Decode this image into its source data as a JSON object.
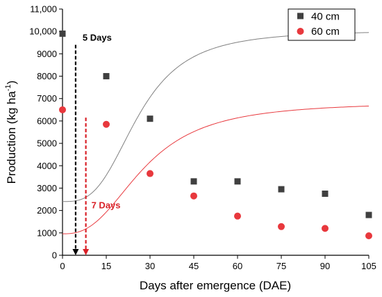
{
  "chart_data": {
    "type": "scatter",
    "title": "",
    "xlabel": "Days after emergence (DAE)",
    "ylabel": "Production (kg ha",
    "ylabel_sup": "-1",
    "ylabel_close": ")",
    "xlim": [
      0,
      105
    ],
    "ylim": [
      0,
      11000
    ],
    "x_ticks": [
      0,
      15,
      30,
      45,
      60,
      75,
      90,
      105
    ],
    "x_tick_labels": [
      "0",
      "15",
      "30",
      "45",
      "60",
      "75",
      "90",
      "105"
    ],
    "y_ticks": [
      0,
      1000,
      2000,
      3000,
      4000,
      5000,
      6000,
      7000,
      8000,
      9000,
      10000,
      11000
    ],
    "y_tick_labels": [
      "0",
      "1000",
      "2000",
      "3000",
      "4000",
      "5000",
      "6000",
      "7000",
      "8000",
      "9000",
      "10,000",
      "11,000"
    ],
    "grid": false,
    "legend_position": "top-right",
    "series": [
      {
        "name": "40 cm",
        "marker": "square",
        "color": "#404040",
        "fit_color": "#808080",
        "x": [
          0,
          15,
          30,
          45,
          60,
          75,
          90,
          105
        ],
        "y": [
          9900,
          8000,
          6100,
          3300,
          3300,
          2950,
          2750,
          1800
        ],
        "fit": {
          "A1": 2400,
          "A2": 10050,
          "x0": 26,
          "p": 3.1
        }
      },
      {
        "name": "60 cm",
        "marker": "circle",
        "color": "#e8383d",
        "fit_color": "#e8383d",
        "x": [
          0,
          15,
          30,
          45,
          60,
          75,
          90,
          105
        ],
        "y": [
          6500,
          5850,
          3650,
          2650,
          1750,
          1280,
          1200,
          870
        ],
        "fit": {
          "A1": 960,
          "A2": 6850,
          "x0": 28,
          "p": 2.6
        }
      }
    ],
    "annotations": [
      {
        "label": "5 Days",
        "x": 4.5,
        "y_top": 9400,
        "y_bottom": 0,
        "color": "#000000"
      },
      {
        "label": "7 Days",
        "x": 8,
        "y_top": 6150,
        "y_bottom": 0,
        "color": "#d92027"
      }
    ]
  }
}
